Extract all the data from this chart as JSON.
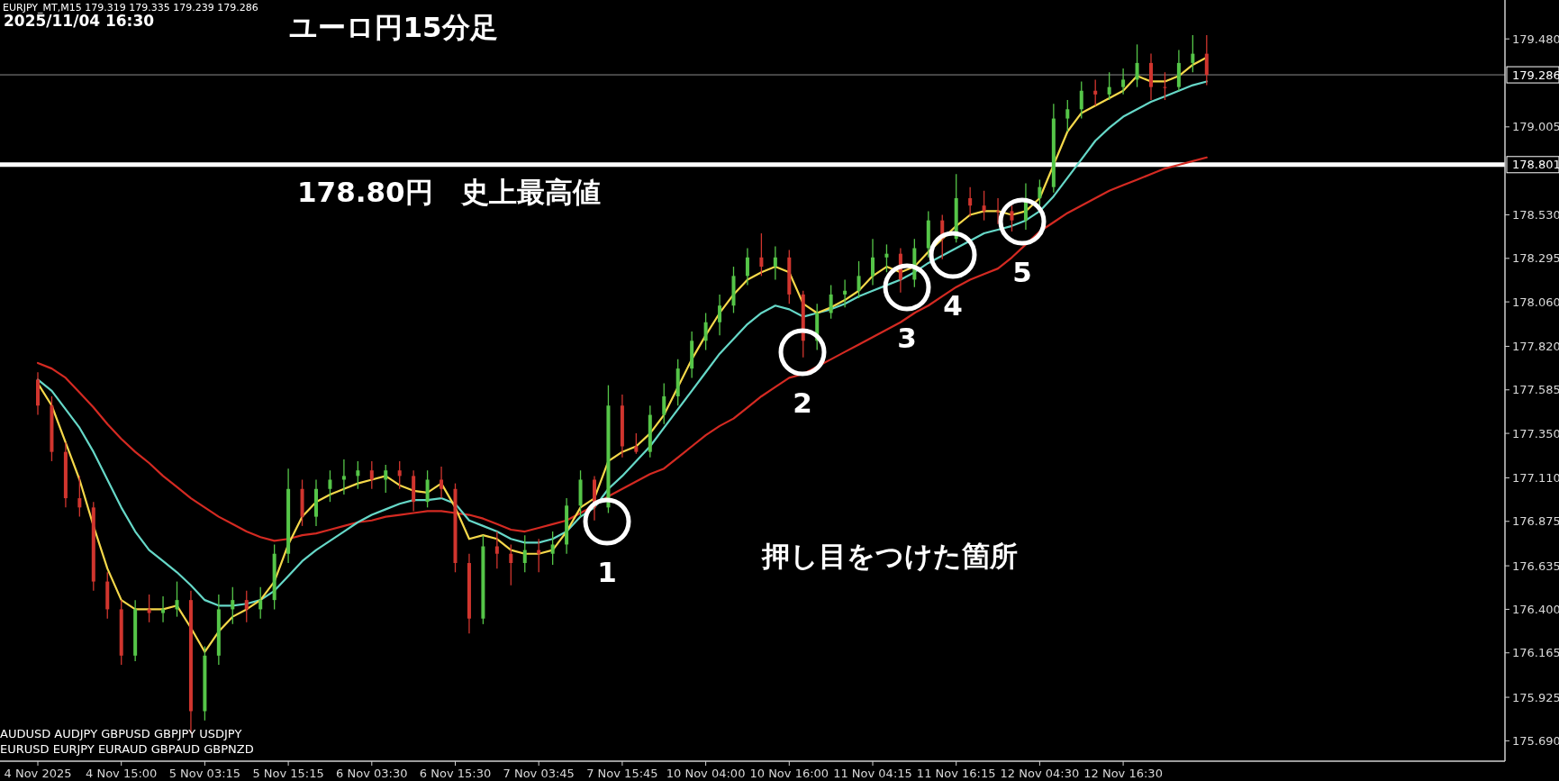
{
  "chart_data": {
    "type": "candlestick",
    "title": "ユーロ円15分足",
    "subtitle": "EURJPY_MT,M15  179.319 179.335 179.239 179.286",
    "annotations": [
      "2025/11/04 16:30",
      "178.80円　史上最高値",
      "押し目をつけた箇所",
      "AUDUSD  AUDJPY  GBPUSD GBPJPY  USDJPY",
      "EURUSD  EURJPY  EURAUD  GBPAUD  GBPNZD",
      "1",
      "2",
      "3",
      "4",
      "5"
    ],
    "categories": [
      "4 Nov 2025",
      null,
      null,
      null,
      null,
      null,
      "4 Nov 15:00",
      null,
      null,
      null,
      null,
      null,
      "5 Nov 03:15",
      null,
      null,
      null,
      null,
      null,
      "5 Nov 15:15",
      null,
      null,
      null,
      null,
      null,
      "6 Nov 03:30",
      null,
      null,
      null,
      null,
      null,
      "6 Nov 15:30",
      null,
      null,
      null,
      null,
      null,
      "7 Nov 03:45",
      null,
      null,
      null,
      null,
      null,
      "7 Nov 15:45",
      null,
      null,
      null,
      null,
      null,
      "10 Nov 04:00",
      null,
      null,
      null,
      null,
      null,
      "10 Nov 16:00",
      null,
      null,
      null,
      null,
      null,
      "11 Nov 04:15",
      null,
      null,
      null,
      null,
      null,
      "11 Nov 16:15",
      null,
      null,
      null,
      null,
      null,
      "12 Nov 04:30",
      null,
      null,
      null,
      null,
      null,
      "12 Nov 16:30",
      null,
      null,
      null,
      null,
      null,
      null
    ],
    "ohlc": [
      [
        177.64,
        177.68,
        177.45,
        177.5
      ],
      [
        177.5,
        177.55,
        177.2,
        177.25
      ],
      [
        177.25,
        177.3,
        176.95,
        177.0
      ],
      [
        177.0,
        177.12,
        176.9,
        176.95
      ],
      [
        176.95,
        176.98,
        176.5,
        176.55
      ],
      [
        176.55,
        176.6,
        176.35,
        176.4
      ],
      [
        176.4,
        176.45,
        176.1,
        176.15
      ],
      [
        176.15,
        176.45,
        176.12,
        176.4
      ],
      [
        176.4,
        176.48,
        176.33,
        176.38
      ],
      [
        176.38,
        176.47,
        176.33,
        176.4
      ],
      [
        176.4,
        176.55,
        176.36,
        176.45
      ],
      [
        176.45,
        176.5,
        175.73,
        175.85
      ],
      [
        175.85,
        176.2,
        175.8,
        176.15
      ],
      [
        176.15,
        176.48,
        176.1,
        176.4
      ],
      [
        176.4,
        176.52,
        176.32,
        176.45
      ],
      [
        176.45,
        176.5,
        176.33,
        176.4
      ],
      [
        176.4,
        176.52,
        176.35,
        176.45
      ],
      [
        176.45,
        176.75,
        176.4,
        176.7
      ],
      [
        176.7,
        177.16,
        176.65,
        177.05
      ],
      [
        177.05,
        177.1,
        176.85,
        176.9
      ],
      [
        176.9,
        177.1,
        176.85,
        177.05
      ],
      [
        177.05,
        177.15,
        176.98,
        177.1
      ],
      [
        177.1,
        177.21,
        177.02,
        177.12
      ],
      [
        177.12,
        177.2,
        177.05,
        177.15
      ],
      [
        177.15,
        177.2,
        177.05,
        177.1
      ],
      [
        177.1,
        177.18,
        177.03,
        177.15
      ],
      [
        177.15,
        177.2,
        177.05,
        177.12
      ],
      [
        177.12,
        177.15,
        176.93,
        176.98
      ],
      [
        176.98,
        177.15,
        176.95,
        177.1
      ],
      [
        177.1,
        177.17,
        177.0,
        177.05
      ],
      [
        177.05,
        177.08,
        176.6,
        176.65
      ],
      [
        176.65,
        176.7,
        176.27,
        176.35
      ],
      [
        176.35,
        176.8,
        176.32,
        176.74
      ],
      [
        176.74,
        176.82,
        176.62,
        176.7
      ],
      [
        176.7,
        176.75,
        176.53,
        176.65
      ],
      [
        176.65,
        176.8,
        176.6,
        176.72
      ],
      [
        176.72,
        176.78,
        176.6,
        176.7
      ],
      [
        176.7,
        176.82,
        176.64,
        176.75
      ],
      [
        176.75,
        177.0,
        176.7,
        176.96
      ],
      [
        176.96,
        177.15,
        176.9,
        177.1
      ],
      [
        177.1,
        177.12,
        176.88,
        176.95
      ],
      [
        176.95,
        177.61,
        176.92,
        177.5
      ],
      [
        177.5,
        177.56,
        177.22,
        177.28
      ],
      [
        177.28,
        177.35,
        177.24,
        177.25
      ],
      [
        177.25,
        177.5,
        177.22,
        177.45
      ],
      [
        177.45,
        177.62,
        177.4,
        177.55
      ],
      [
        177.55,
        177.75,
        177.5,
        177.7
      ],
      [
        177.7,
        177.9,
        177.65,
        177.85
      ],
      [
        177.85,
        178.0,
        177.8,
        177.95
      ],
      [
        177.95,
        178.1,
        177.88,
        178.04
      ],
      [
        178.04,
        178.25,
        178.0,
        178.2
      ],
      [
        178.2,
        178.35,
        178.15,
        178.3
      ],
      [
        178.3,
        178.43,
        178.2,
        178.25
      ],
      [
        178.25,
        178.36,
        178.18,
        178.3
      ],
      [
        178.3,
        178.34,
        178.05,
        178.1
      ],
      [
        178.1,
        178.12,
        177.76,
        177.85
      ],
      [
        177.85,
        178.05,
        177.8,
        178.0
      ],
      [
        178.0,
        178.15,
        177.97,
        178.1
      ],
      [
        178.1,
        178.18,
        178.03,
        178.12
      ],
      [
        178.12,
        178.28,
        178.08,
        178.2
      ],
      [
        178.2,
        178.4,
        178.15,
        178.3
      ],
      [
        178.3,
        178.37,
        178.22,
        178.32
      ],
      [
        178.32,
        178.35,
        178.11,
        178.18
      ],
      [
        178.18,
        178.4,
        178.14,
        178.35
      ],
      [
        178.35,
        178.55,
        178.3,
        178.5
      ],
      [
        178.5,
        178.53,
        178.29,
        178.4
      ],
      [
        178.4,
        178.75,
        178.38,
        178.62
      ],
      [
        178.62,
        178.68,
        178.52,
        178.58
      ],
      [
        178.58,
        178.66,
        178.5,
        178.55
      ],
      [
        178.55,
        178.62,
        178.48,
        178.55
      ],
      [
        178.55,
        178.58,
        178.44,
        178.5
      ],
      [
        178.5,
        178.7,
        178.45,
        178.62
      ],
      [
        178.62,
        178.72,
        178.58,
        178.68
      ],
      [
        178.68,
        179.13,
        178.65,
        179.05
      ],
      [
        179.05,
        179.15,
        178.98,
        179.1
      ],
      [
        179.1,
        179.25,
        179.05,
        179.2
      ],
      [
        179.2,
        179.26,
        179.12,
        179.18
      ],
      [
        179.18,
        179.3,
        179.15,
        179.22
      ],
      [
        179.22,
        179.32,
        179.18,
        179.26
      ],
      [
        179.26,
        179.45,
        179.22,
        179.35
      ],
      [
        179.35,
        179.4,
        179.15,
        179.22
      ],
      [
        179.22,
        179.3,
        179.15,
        179.22
      ],
      [
        179.22,
        179.42,
        179.2,
        179.35
      ],
      [
        179.35,
        179.5,
        179.3,
        179.4
      ],
      [
        179.4,
        179.5,
        179.23,
        179.286
      ]
    ],
    "colors": [
      "#d0352e",
      "#d0352e",
      "#d0352e",
      "#d0352e",
      "#d0352e",
      "#d0352e",
      "#d0352e",
      "#55c548",
      "#d0352e",
      "#55c548",
      "#55c548",
      "#d0352e",
      "#55c548",
      "#55c548",
      "#55c548",
      "#d0352e",
      "#55c548",
      "#55c548",
      "#55c548",
      "#d0352e",
      "#55c548",
      "#55c548",
      "#55c548",
      "#55c548",
      "#d0352e",
      "#55c548",
      "#d0352e",
      "#d0352e",
      "#55c548",
      "#d0352e",
      "#d0352e",
      "#d0352e",
      "#55c548",
      "#d0352e",
      "#d0352e",
      "#55c548",
      "#d0352e",
      "#55c548",
      "#55c548",
      "#55c548",
      "#d0352e",
      "#55c548",
      "#d0352e",
      "#d0352e",
      "#55c548",
      "#55c548",
      "#55c548",
      "#55c548",
      "#55c548",
      "#55c548",
      "#55c548",
      "#55c548",
      "#d0352e",
      "#55c548",
      "#d0352e",
      "#d0352e",
      "#55c548",
      "#55c548",
      "#55c548",
      "#55c548",
      "#55c548",
      "#55c548",
      "#d0352e",
      "#55c548",
      "#55c548",
      "#d0352e",
      "#55c548",
      "#d0352e",
      "#d0352e",
      "#d0352e",
      "#d0352e",
      "#55c548",
      "#55c548",
      "#55c548",
      "#55c548",
      "#55c548",
      "#d0352e",
      "#55c548",
      "#55c548",
      "#55c548",
      "#d0352e",
      "#d0352e",
      "#55c548",
      "#55c548",
      "#d0352e"
    ],
    "series": [
      {
        "type": "line",
        "color": "#d42a22",
        "values": [
          177.73,
          177.7,
          177.65,
          177.57,
          177.49,
          177.4,
          177.32,
          177.25,
          177.19,
          177.12,
          177.06,
          177.0,
          176.95,
          176.9,
          176.86,
          176.82,
          176.79,
          176.77,
          176.78,
          176.8,
          176.81,
          176.83,
          176.85,
          176.87,
          176.88,
          176.9,
          176.91,
          176.92,
          176.93,
          176.93,
          176.92,
          176.91,
          176.89,
          176.86,
          176.83,
          176.82,
          176.84,
          176.86,
          176.88,
          176.92,
          176.96,
          177.01,
          177.05,
          177.09,
          177.13,
          177.16,
          177.22,
          177.28,
          177.34,
          177.39,
          177.43,
          177.49,
          177.55,
          177.6,
          177.65,
          177.67,
          177.71,
          177.75,
          177.79,
          177.83,
          177.87,
          177.91,
          177.95,
          178.0,
          178.04,
          178.09,
          178.14,
          178.18,
          178.21,
          178.24,
          178.3,
          178.37,
          178.44,
          178.49,
          178.54,
          178.58,
          178.62,
          178.66,
          178.69,
          178.72,
          178.75,
          178.78,
          178.8,
          178.82,
          178.84
        ]
      },
      {
        "type": "line",
        "color": "#66d8c8",
        "values": [
          177.64,
          177.58,
          177.48,
          177.38,
          177.25,
          177.1,
          176.95,
          176.82,
          176.72,
          176.66,
          176.6,
          176.53,
          176.45,
          176.42,
          176.42,
          176.43,
          176.45,
          176.5,
          176.58,
          176.66,
          176.72,
          176.77,
          176.82,
          176.87,
          176.91,
          176.94,
          176.97,
          176.99,
          176.99,
          177.0,
          176.97,
          176.88,
          176.85,
          176.82,
          176.78,
          176.76,
          176.76,
          176.78,
          176.82,
          176.9,
          176.95,
          177.05,
          177.12,
          177.2,
          177.28,
          177.38,
          177.48,
          177.58,
          177.68,
          177.78,
          177.86,
          177.94,
          178.0,
          178.04,
          178.02,
          177.98,
          178.0,
          178.02,
          178.05,
          178.09,
          178.12,
          178.15,
          178.18,
          178.22,
          178.27,
          178.31,
          178.35,
          178.39,
          178.43,
          178.45,
          178.47,
          178.5,
          178.55,
          178.63,
          178.73,
          178.83,
          178.93,
          179.0,
          179.06,
          179.1,
          179.14,
          179.17,
          179.2,
          179.23,
          179.25
        ]
      },
      {
        "type": "line",
        "color": "#f5d84a",
        "values": [
          177.62,
          177.5,
          177.3,
          177.1,
          176.85,
          176.62,
          176.45,
          176.4,
          176.4,
          176.4,
          176.42,
          176.3,
          176.17,
          176.28,
          176.36,
          176.4,
          176.45,
          176.55,
          176.75,
          176.9,
          176.98,
          177.02,
          177.05,
          177.08,
          177.1,
          177.12,
          177.07,
          177.04,
          177.03,
          177.08,
          176.95,
          176.78,
          176.8,
          176.78,
          176.72,
          176.7,
          176.7,
          176.72,
          176.82,
          176.95,
          177.0,
          177.2,
          177.25,
          177.28,
          177.35,
          177.45,
          177.6,
          177.75,
          177.88,
          178.0,
          178.1,
          178.18,
          178.22,
          178.25,
          178.22,
          178.05,
          178.0,
          178.03,
          178.07,
          178.12,
          178.2,
          178.25,
          178.22,
          178.25,
          178.33,
          178.4,
          178.47,
          178.53,
          178.55,
          178.55,
          178.53,
          178.55,
          178.62,
          178.8,
          178.98,
          179.08,
          179.12,
          179.16,
          179.2,
          179.28,
          179.25,
          179.25,
          179.28,
          179.34,
          179.38
        ]
      }
    ],
    "ylim": [
      175.58,
      179.69
    ],
    "yticks": [
      {
        "value": 175.69,
        "label": "175.690"
      },
      {
        "value": 175.925,
        "label": "175.925"
      },
      {
        "value": 176.165,
        "label": "176.165"
      },
      {
        "value": 176.4,
        "label": "176.400"
      },
      {
        "value": 176.635,
        "label": "176.635"
      },
      {
        "value": 176.875,
        "label": "176.875"
      },
      {
        "value": 177.11,
        "label": "177.110"
      },
      {
        "value": 177.35,
        "label": "177.350"
      },
      {
        "value": 177.585,
        "label": "177.585"
      },
      {
        "value": 177.82,
        "label": "177.820"
      },
      {
        "value": 178.06,
        "label": "178.060"
      },
      {
        "value": 178.295,
        "label": "178.295"
      },
      {
        "value": 178.53,
        "label": "178.530"
      },
      {
        "value": 179.005,
        "label": "179.005"
      },
      {
        "value": 179.48,
        "label": "179.480"
      }
    ],
    "ref_lines": [
      {
        "axis": "y",
        "value": 178.801,
        "label": "178.801",
        "color": "#ffffff"
      },
      {
        "axis": "y",
        "value": 179.286,
        "label": "179.286",
        "color": "#8c8c8c"
      }
    ]
  }
}
